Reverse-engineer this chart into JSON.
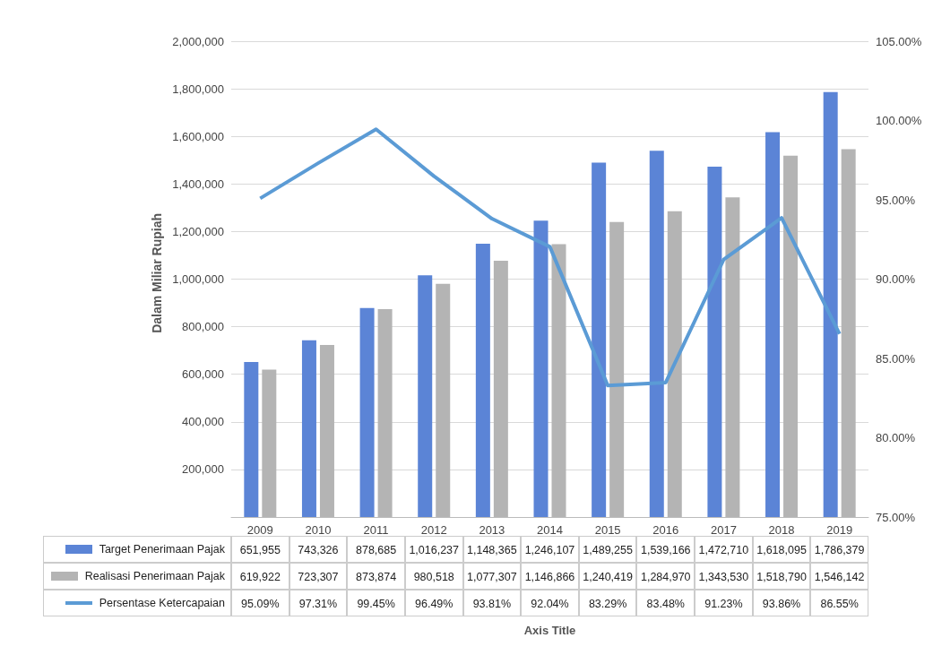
{
  "chart_data": {
    "type": "bar",
    "ylabel": "Dalam Miliar Rupiah",
    "annotations": [
      "Axis Title"
    ],
    "categories": [
      "2009",
      "2010",
      "2011",
      "2012",
      "2013",
      "2014",
      "2015",
      "2016",
      "2017",
      "2018",
      "2019"
    ],
    "series": [
      {
        "name": "Target Penerimaan Pajak",
        "color": "#5b84d6",
        "values": [
          651955,
          743326,
          878685,
          1016237,
          1148365,
          1246107,
          1489255,
          1539166,
          1472710,
          1618095,
          1786379
        ],
        "value_labels": [
          "651,955",
          "743,326",
          "878,685",
          "1,016,237",
          "1,148,365",
          "1,246,107",
          "1,489,255",
          "1,539,166",
          "1,472,710",
          "1,618,095",
          "1,786,379"
        ]
      },
      {
        "name": "Realisasi Penerimaan Pajak",
        "color": "#b4b4b4",
        "values": [
          619922,
          723307,
          873874,
          980518,
          1077307,
          1146866,
          1240419,
          1284970,
          1343530,
          1518790,
          1546142
        ],
        "value_labels": [
          "619,922",
          "723,307",
          "873,874",
          "980,518",
          "1,077,307",
          "1,146,866",
          "1,240,419",
          "1,284,970",
          "1,343,530",
          "1,518,790",
          "1,546,142"
        ]
      },
      {
        "name": "Persentase Ketercapaian",
        "type": "line",
        "axis": "y2",
        "color": "#5b9bd5",
        "values": [
          95.09,
          97.31,
          99.45,
          96.49,
          93.81,
          92.04,
          83.29,
          83.48,
          91.23,
          93.86,
          86.55
        ],
        "value_labels": [
          "95.09%",
          "97.31%",
          "99.45%",
          "96.49%",
          "93.81%",
          "92.04%",
          "83.29%",
          "83.48%",
          "91.23%",
          "93.86%",
          "86.55%"
        ]
      }
    ],
    "ylim": [
      0,
      2000000
    ],
    "yticks": [
      {
        "value": 0,
        "label": null
      },
      {
        "value": 200000,
        "label": "200,000"
      },
      {
        "value": 400000,
        "label": "400,000"
      },
      {
        "value": 600000,
        "label": "600,000"
      },
      {
        "value": 800000,
        "label": "800,000"
      },
      {
        "value": 1000000,
        "label": "1,000,000"
      },
      {
        "value": 1200000,
        "label": "1,200,000"
      },
      {
        "value": 1400000,
        "label": "1,400,000"
      },
      {
        "value": 1600000,
        "label": "1,600,000"
      },
      {
        "value": 1800000,
        "label": "1,800,000"
      },
      {
        "value": 2000000,
        "label": "2,000,000"
      }
    ],
    "y2lim": [
      75,
      105
    ],
    "y2ticks": [
      {
        "value": 75,
        "label": "75.00%"
      },
      {
        "value": 80,
        "label": "80.00%"
      },
      {
        "value": 85,
        "label": "85.00%"
      },
      {
        "value": 90,
        "label": "90.00%"
      },
      {
        "value": 95,
        "label": "95.00%"
      },
      {
        "value": 100,
        "label": "100.00%"
      },
      {
        "value": 105,
        "label": "105.00%"
      }
    ],
    "grid": "y",
    "legend": "bottom left",
    "marker": "none",
    "line_style": "solid"
  }
}
